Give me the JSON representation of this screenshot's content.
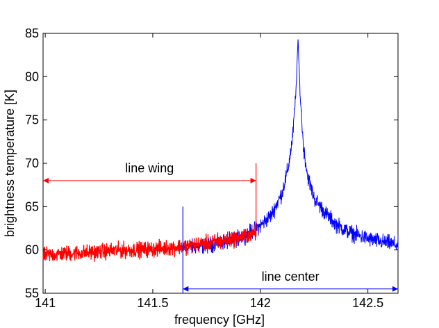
{
  "chart_data": {
    "type": "line",
    "title": "",
    "xlabel": "frequency [GHz]",
    "ylabel": "brightness temperature [K]",
    "xlim": [
      140.99,
      142.64
    ],
    "ylim": [
      55,
      85
    ],
    "x_ticks": [
      141,
      141.5,
      142,
      142.5
    ],
    "x_tick_labels": [
      "141",
      "141.5",
      "142",
      "142.5"
    ],
    "y_ticks": [
      55,
      60,
      65,
      70,
      75,
      80,
      85
    ],
    "y_tick_labels": [
      "55",
      "60",
      "65",
      "70",
      "75",
      "80",
      "85"
    ],
    "grid": false,
    "legend": "none",
    "series": [
      {
        "color": "#0000ff",
        "line_center": 142.175,
        "peak": 84.3,
        "x_range": [
          141.64,
          142.64
        ],
        "points": [
          [
            141.64,
            60.2
          ],
          [
            141.7,
            60.4
          ],
          [
            141.75,
            60.5
          ],
          [
            141.8,
            60.8
          ],
          [
            141.85,
            61.0
          ],
          [
            141.9,
            61.4
          ],
          [
            141.95,
            62.0
          ],
          [
            142.0,
            62.8
          ],
          [
            142.05,
            64.0
          ],
          [
            142.1,
            66.5
          ],
          [
            142.13,
            69.5
          ],
          [
            142.15,
            73.0
          ],
          [
            142.165,
            78.0
          ],
          [
            142.175,
            84.3
          ],
          [
            142.185,
            78.0
          ],
          [
            142.2,
            72.0
          ],
          [
            142.22,
            68.5
          ],
          [
            142.25,
            66.0
          ],
          [
            142.3,
            64.3
          ],
          [
            142.35,
            63.0
          ],
          [
            142.4,
            62.2
          ],
          [
            142.45,
            61.7
          ],
          [
            142.5,
            61.3
          ],
          [
            142.55,
            61.0
          ],
          [
            142.6,
            60.8
          ],
          [
            142.64,
            60.5
          ]
        ]
      },
      {
        "color": "#ff0000",
        "x_range": [
          140.99,
          141.98
        ],
        "points": [
          [
            140.99,
            59.4
          ],
          [
            141.1,
            59.6
          ],
          [
            141.2,
            59.7
          ],
          [
            141.3,
            59.9
          ],
          [
            141.4,
            60.0
          ],
          [
            141.5,
            60.1
          ],
          [
            141.6,
            60.3
          ],
          [
            141.7,
            60.6
          ],
          [
            141.8,
            60.9
          ],
          [
            141.9,
            61.4
          ],
          [
            141.98,
            62.0
          ]
        ]
      }
    ],
    "annotations": [
      {
        "label": "line wing",
        "color": "#ff0000",
        "arrow_y": 68,
        "arrow_x": [
          140.99,
          141.98
        ],
        "marker_x": 141.98,
        "marker_y": [
          61.5,
          70
        ]
      },
      {
        "label": "line center",
        "color": "#0000ff",
        "arrow_y": 55.5,
        "arrow_x": [
          141.64,
          142.64
        ],
        "marker_x": 141.64,
        "marker_y": [
          55,
          65
        ]
      }
    ]
  }
}
